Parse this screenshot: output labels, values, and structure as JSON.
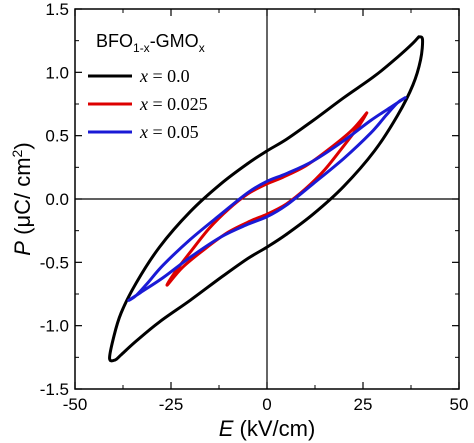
{
  "chart_data": {
    "type": "line",
    "xlabel_var": "E",
    "xlabel_unit": " (kV/cm)",
    "ylabel_var": "P",
    "ylabel_unit": " (μC/ cm",
    "ylabel_sup": "2",
    "ylabel_close": ")",
    "xlim": [
      -50,
      50
    ],
    "ylim": [
      -1.5,
      1.5
    ],
    "xticks": [
      -50,
      -25,
      0,
      25,
      50
    ],
    "xtick_labels": [
      "-50",
      "-25",
      "0",
      "25",
      "50"
    ],
    "yticks": [
      -1.5,
      -1.0,
      -0.5,
      0.0,
      0.5,
      1.0,
      1.5
    ],
    "ytick_labels": [
      "-1.5",
      "-1.0",
      "-0.5",
      "0.0",
      "0.5",
      "1.0",
      "1.5"
    ],
    "grid": false,
    "zero_lines": true,
    "legend_position": "top-left",
    "legend_title_main": "BFO",
    "legend_title_sub1": "1-x",
    "legend_title_mid": "-GMO",
    "legend_title_sub2": "x",
    "series": [
      {
        "name": "x = 0.0",
        "name_var": "x",
        "name_rest": " = 0.0",
        "color": "#000000",
        "points": [
          [
            39.5,
            1.28
          ],
          [
            38,
            1.23
          ],
          [
            34,
            1.12
          ],
          [
            28,
            0.97
          ],
          [
            20,
            0.8
          ],
          [
            12,
            0.62
          ],
          [
            5,
            0.47
          ],
          [
            0,
            0.38
          ],
          [
            -5,
            0.28
          ],
          [
            -12,
            0.12
          ],
          [
            -20,
            -0.1
          ],
          [
            -28,
            -0.38
          ],
          [
            -34,
            -0.66
          ],
          [
            -38,
            -0.9
          ],
          [
            -40,
            -1.1
          ],
          [
            -41,
            -1.26
          ],
          [
            -39.5,
            -1.27
          ],
          [
            -38,
            -1.23
          ],
          [
            -34,
            -1.12
          ],
          [
            -28,
            -0.97
          ],
          [
            -20,
            -0.8
          ],
          [
            -12,
            -0.62
          ],
          [
            -5,
            -0.47
          ],
          [
            0,
            -0.38
          ],
          [
            5,
            -0.28
          ],
          [
            12,
            -0.12
          ],
          [
            20,
            0.1
          ],
          [
            28,
            0.38
          ],
          [
            34,
            0.66
          ],
          [
            38,
            0.9
          ],
          [
            40,
            1.1
          ],
          [
            40.5,
            1.26
          ],
          [
            39.5,
            1.28
          ]
        ]
      },
      {
        "name": "x = 0.025",
        "name_var": "x",
        "name_rest": " = 0.025",
        "color": "#dd0000",
        "points": [
          [
            26,
            0.68
          ],
          [
            22,
            0.54
          ],
          [
            16,
            0.39
          ],
          [
            10,
            0.26
          ],
          [
            4,
            0.17
          ],
          [
            0,
            0.12
          ],
          [
            -5,
            0.04
          ],
          [
            -10,
            -0.08
          ],
          [
            -15,
            -0.23
          ],
          [
            -20,
            -0.42
          ],
          [
            -24,
            -0.58
          ],
          [
            -26,
            -0.68
          ],
          [
            -22,
            -0.54
          ],
          [
            -16,
            -0.39
          ],
          [
            -10,
            -0.26
          ],
          [
            -4,
            -0.17
          ],
          [
            0,
            -0.12
          ],
          [
            5,
            -0.04
          ],
          [
            10,
            0.08
          ],
          [
            15,
            0.23
          ],
          [
            20,
            0.42
          ],
          [
            24,
            0.58
          ],
          [
            26,
            0.68
          ]
        ]
      },
      {
        "name": "x = 0.05",
        "name_var": "x",
        "name_rest": " = 0.05",
        "color": "#1a1ad6",
        "points": [
          [
            36,
            0.8
          ],
          [
            33,
            0.74
          ],
          [
            27,
            0.62
          ],
          [
            20,
            0.46
          ],
          [
            12,
            0.3
          ],
          [
            5,
            0.2
          ],
          [
            0,
            0.14
          ],
          [
            -5,
            0.05
          ],
          [
            -12,
            -0.12
          ],
          [
            -20,
            -0.32
          ],
          [
            -27,
            -0.52
          ],
          [
            -31,
            -0.66
          ],
          [
            -34,
            -0.76
          ],
          [
            -36,
            -0.8
          ],
          [
            -33,
            -0.74
          ],
          [
            -27,
            -0.62
          ],
          [
            -20,
            -0.46
          ],
          [
            -12,
            -0.3
          ],
          [
            -5,
            -0.2
          ],
          [
            0,
            -0.14
          ],
          [
            5,
            -0.05
          ],
          [
            12,
            0.12
          ],
          [
            20,
            0.32
          ],
          [
            27,
            0.52
          ],
          [
            31,
            0.66
          ],
          [
            34,
            0.76
          ],
          [
            36,
            0.8
          ]
        ]
      }
    ]
  }
}
